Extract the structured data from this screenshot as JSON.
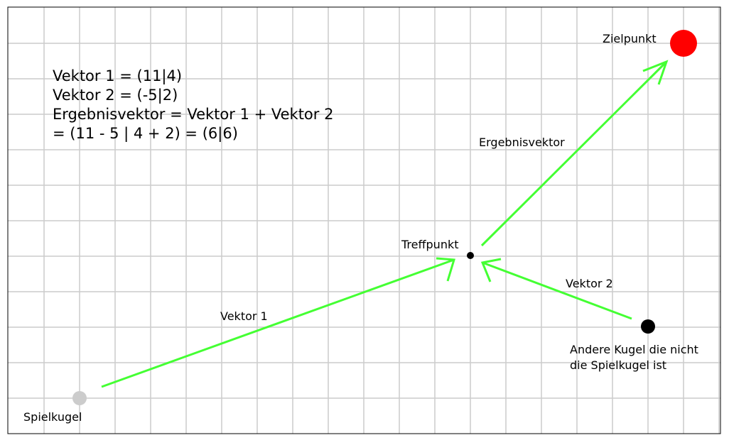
{
  "calculation": {
    "line1": "Vektor 1 = (11|4)",
    "line2": "Vektor 2 = (-5|2)",
    "line3": "Ergebnisvektor = Vektor 1 + Vektor 2",
    "line4": "= (11 - 5 | 4 + 2) = (6|6)"
  },
  "labels": {
    "target": "Zielpunkt",
    "result_vector": "Ergebnisvektor",
    "impact_point": "Treffpunkt",
    "vector2": "Vektor 2",
    "vector1": "Vektor 1",
    "other_ball_line1": "Andere Kugel die nicht",
    "other_ball_line2": "die Spielkugel ist",
    "cue_ball": "Spielkugel"
  },
  "colors": {
    "grid": "#cccccc",
    "vector": "#44ff33",
    "target_ball": "#ff0000",
    "other_ball": "#000000",
    "cue_ball": "#cccccc",
    "impact_point": "#000000"
  }
}
